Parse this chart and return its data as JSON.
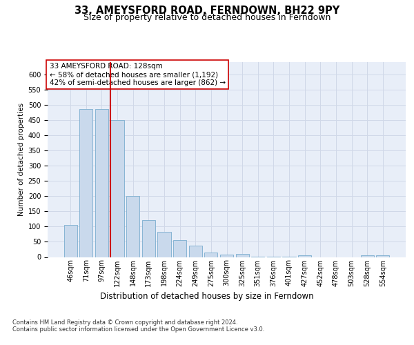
{
  "title1": "33, AMEYSFORD ROAD, FERNDOWN, BH22 9PY",
  "title2": "Size of property relative to detached houses in Ferndown",
  "xlabel": "Distribution of detached houses by size in Ferndown",
  "ylabel": "Number of detached properties",
  "categories": [
    "46sqm",
    "71sqm",
    "97sqm",
    "122sqm",
    "148sqm",
    "173sqm",
    "198sqm",
    "224sqm",
    "249sqm",
    "275sqm",
    "300sqm",
    "325sqm",
    "351sqm",
    "376sqm",
    "401sqm",
    "427sqm",
    "452sqm",
    "478sqm",
    "503sqm",
    "528sqm",
    "554sqm"
  ],
  "values": [
    105,
    487,
    485,
    450,
    200,
    122,
    82,
    55,
    38,
    14,
    8,
    10,
    2,
    2,
    2,
    6,
    0,
    0,
    0,
    6,
    6
  ],
  "bar_color": "#c9d9ec",
  "bar_edge_color": "#7aadcf",
  "property_line_color": "#cc0000",
  "annotation_text": "33 AMEYSFORD ROAD: 128sqm\n← 58% of detached houses are smaller (1,192)\n42% of semi-detached houses are larger (862) →",
  "annotation_box_color": "#ffffff",
  "annotation_box_edge": "#cc0000",
  "ylim_max": 640,
  "yticks": [
    0,
    50,
    100,
    150,
    200,
    250,
    300,
    350,
    400,
    450,
    500,
    550,
    600
  ],
  "grid_color": "#d0d8e8",
  "plot_bg_color": "#e8eef8",
  "footer_text": "Contains HM Land Registry data © Crown copyright and database right 2024.\nContains public sector information licensed under the Open Government Licence v3.0.",
  "title1_fontsize": 10.5,
  "title2_fontsize": 9,
  "xlabel_fontsize": 8.5,
  "ylabel_fontsize": 7.5,
  "tick_fontsize": 7,
  "annotation_fontsize": 7.5,
  "footer_fontsize": 6
}
